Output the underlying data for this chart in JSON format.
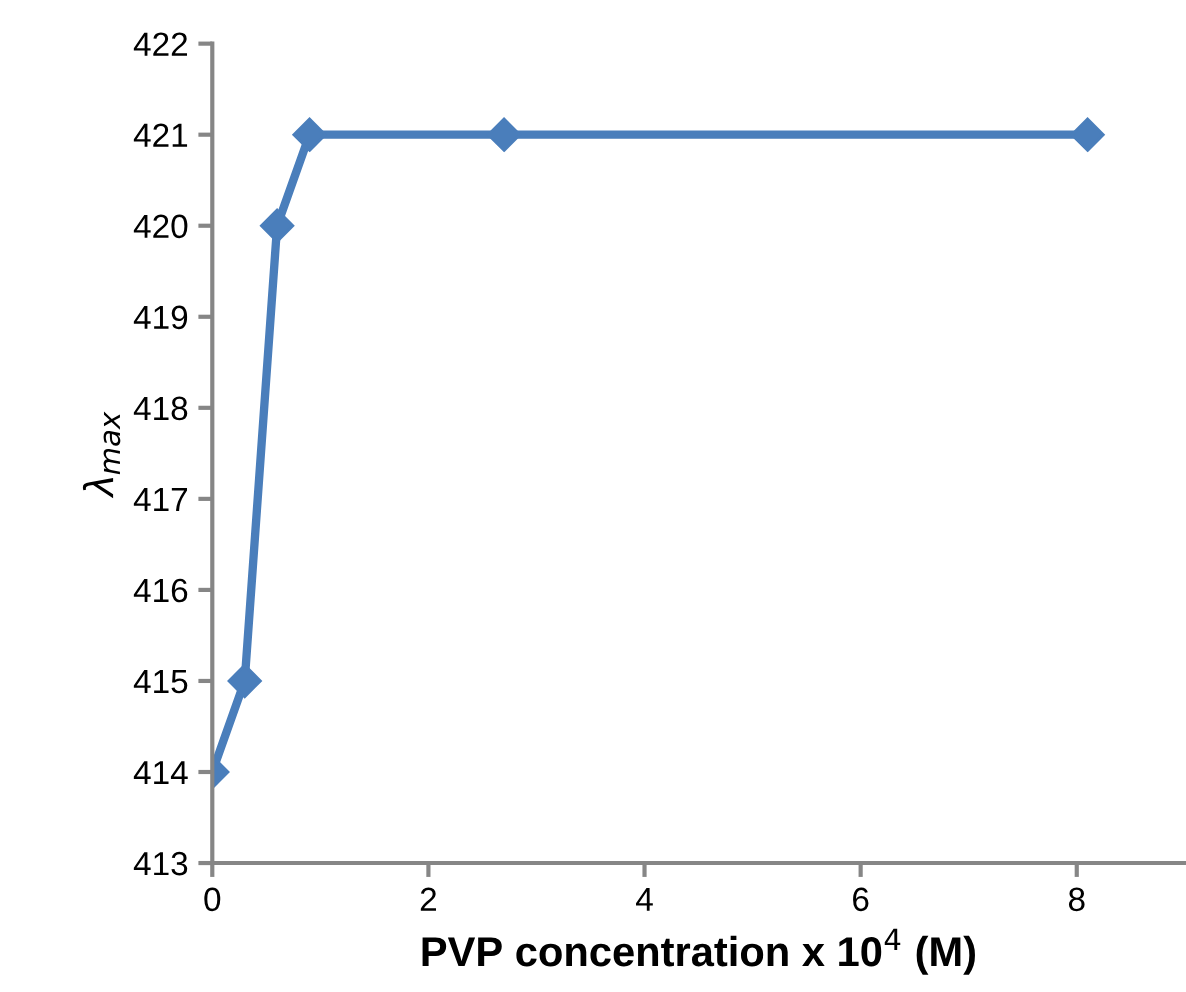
{
  "chart_data": {
    "type": "line",
    "xlabel": "PVP concentration x 10$^{4}$ (M)",
    "ylabel": "λ$_{max}$",
    "x": [
      0,
      0.3,
      0.6,
      0.9,
      2.7,
      8.1
    ],
    "series": [
      {
        "color": "#4a7ebb",
        "values": [
          414,
          415,
          420,
          421,
          421,
          421
        ]
      }
    ],
    "xlim": [
      0,
      9
    ],
    "xticks": [
      0,
      2,
      4,
      6,
      8
    ],
    "ylim": [
      413,
      422
    ],
    "yticks": [
      413,
      414,
      415,
      416,
      417,
      418,
      419,
      420,
      421,
      422
    ],
    "grid": false,
    "legend": false,
    "marker": "diamond",
    "line_style": "solid"
  }
}
